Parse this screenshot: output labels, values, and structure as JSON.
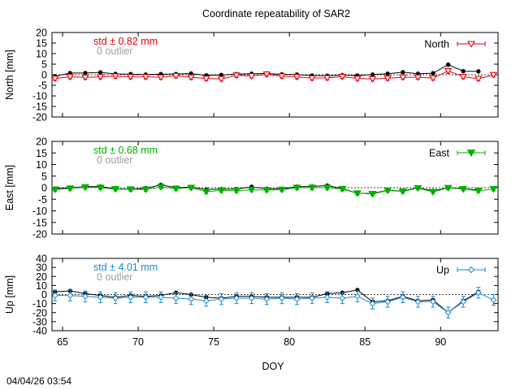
{
  "figure": {
    "title": "Coordinate repeatability of SAR2",
    "xlabel": "DOY",
    "timestamp": "04/04/26 03:54"
  },
  "colors": {
    "north": "#e8000b",
    "east": "#00b000",
    "up": "#1e88d0",
    "reference": "#000000",
    "outlier": "#a0a0a0"
  },
  "chart_data": [
    {
      "type": "line",
      "panel": "north",
      "ylabel": "North [mm]",
      "legend": "North",
      "std_text": "std ± 0.82 mm",
      "outlier_text": "0 outlier",
      "xlim": [
        64.3,
        93.8
      ],
      "ylim": [
        -20,
        20
      ],
      "yticks": [
        "20",
        "15",
        "10",
        "5",
        "0",
        "-5",
        "-10",
        "-15",
        "-20"
      ],
      "xticks": [
        "65",
        "70",
        "75",
        "80",
        "85",
        "90"
      ],
      "x": [
        64.5,
        65.5,
        66.5,
        67.5,
        68.5,
        69.5,
        70.5,
        71.5,
        72.5,
        73.5,
        74.5,
        75.5,
        76.5,
        77.5,
        78.5,
        79.5,
        80.5,
        81.5,
        82.5,
        83.5,
        84.5,
        85.5,
        86.5,
        87.5,
        88.5,
        89.5,
        90.5,
        91.5,
        92.5,
        93.5
      ],
      "series": [
        {
          "name": "North",
          "values": [
            -1.8,
            -1.0,
            -1.2,
            -1.0,
            -0.7,
            -1.0,
            -1.0,
            -1.2,
            -0.5,
            -1.2,
            -1.8,
            -2.0,
            -0.3,
            -0.6,
            0.2,
            -0.7,
            -1.0,
            -1.6,
            -1.5,
            -0.9,
            -1.8,
            -2.0,
            -1.7,
            -1.2,
            -1.2,
            -1.6,
            1.8,
            -0.9,
            -1.9,
            0.0
          ],
          "err": [
            1.0,
            1.0,
            1.0,
            1.0,
            1.0,
            1.0,
            1.0,
            1.0,
            1.0,
            1.0,
            1.0,
            1.0,
            1.0,
            1.0,
            1.0,
            1.0,
            1.0,
            1.0,
            1.0,
            1.0,
            1.0,
            1.0,
            1.0,
            1.0,
            1.0,
            1.0,
            1.2,
            1.0,
            1.0,
            1.0
          ]
        },
        {
          "name": "reference",
          "x": [
            64.5,
            65.5,
            66.5,
            67.5,
            68.5,
            69.5,
            70.5,
            71.5,
            72.5,
            73.5,
            74.5,
            75.5,
            76.5,
            77.5,
            78.5,
            79.5,
            80.5,
            81.5,
            82.5,
            83.5,
            84.5,
            85.5,
            86.5,
            87.5,
            88.5,
            89.5,
            90.5,
            91.5,
            92.5
          ],
          "values": [
            -0.7,
            0.8,
            0.8,
            1.1,
            0.4,
            0.3,
            0.1,
            0.3,
            0.3,
            0.6,
            -0.3,
            -0.1,
            0.3,
            0.5,
            0.6,
            0.2,
            0.1,
            -0.4,
            -0.5,
            -0.2,
            -0.4,
            0.1,
            0.5,
            1.2,
            0.5,
            0.7,
            4.8,
            1.7,
            1.6
          ]
        }
      ]
    },
    {
      "type": "line",
      "panel": "east",
      "ylabel": "East [mm]",
      "legend": "East",
      "std_text": "std ± 0.68 mm",
      "outlier_text": "0 outlier",
      "xlim": [
        64.3,
        93.8
      ],
      "ylim": [
        -20,
        20
      ],
      "yticks": [
        "20",
        "15",
        "10",
        "5",
        "0",
        "-5",
        "-10",
        "-15",
        "-20"
      ],
      "xticks": [
        "65",
        "70",
        "75",
        "80",
        "85",
        "90"
      ],
      "x": [
        64.5,
        65.5,
        66.5,
        67.5,
        68.5,
        69.5,
        70.5,
        71.5,
        72.5,
        73.5,
        74.5,
        75.5,
        76.5,
        77.5,
        78.5,
        79.5,
        80.5,
        81.5,
        82.5,
        83.5,
        84.5,
        85.5,
        86.5,
        87.5,
        88.5,
        89.5,
        90.5,
        91.5,
        92.5,
        93.5
      ],
      "series": [
        {
          "name": "East",
          "values": [
            -0.8,
            -0.3,
            0.2,
            0.0,
            -0.6,
            -0.7,
            -0.8,
            0.3,
            -0.4,
            0.0,
            -1.7,
            -1.2,
            -1.3,
            -0.9,
            -1.0,
            -0.9,
            0.0,
            0.0,
            0.0,
            -0.6,
            -2.4,
            -2.7,
            -1.2,
            -1.6,
            -0.2,
            -1.8,
            -0.1,
            -0.6,
            -1.3,
            -0.6
          ],
          "err": [
            0.8,
            0.8,
            0.8,
            0.8,
            0.8,
            0.8,
            0.8,
            0.8,
            0.8,
            0.8,
            0.8,
            0.8,
            0.8,
            0.8,
            0.8,
            0.8,
            0.8,
            0.8,
            0.8,
            0.8,
            0.8,
            0.8,
            0.8,
            0.8,
            0.8,
            0.8,
            0.8,
            0.8,
            0.8,
            0.8
          ]
        },
        {
          "name": "reference",
          "x": [
            64.5,
            65.5,
            66.5,
            67.5,
            68.5,
            69.5,
            70.5,
            71.5,
            72.5,
            73.5,
            74.5,
            75.5,
            76.5,
            77.5,
            78.5,
            79.5,
            80.5,
            81.5,
            82.5,
            83.5,
            84.5,
            85.5,
            86.5,
            87.5,
            88.5,
            89.5,
            90.5,
            91.5,
            92.5
          ],
          "values": [
            -0.4,
            -0.1,
            0.5,
            0.5,
            -0.5,
            -0.6,
            -0.2,
            1.2,
            0.0,
            0.2,
            -0.8,
            -0.6,
            -0.6,
            0.4,
            -0.5,
            -0.5,
            0.4,
            0.5,
            0.9,
            -0.4,
            -2.4,
            -2.5,
            -1.1,
            -1.5,
            0.0,
            -1.4,
            0.0,
            -0.5,
            -1.0
          ]
        }
      ]
    },
    {
      "type": "line",
      "panel": "up",
      "ylabel": "Up [mm]",
      "legend": "Up",
      "std_text": "std ± 4.01 mm",
      "outlier_text": "0 outlier",
      "xlim": [
        64.3,
        93.8
      ],
      "ylim": [
        -40,
        40
      ],
      "yticks": [
        "40",
        "30",
        "20",
        "10",
        "0",
        "-10",
        "-20",
        "-30",
        "-40"
      ],
      "xticks": [
        "65",
        "70",
        "75",
        "80",
        "85",
        "90"
      ],
      "x": [
        64.5,
        65.5,
        66.5,
        67.5,
        68.5,
        69.5,
        70.5,
        71.5,
        72.5,
        73.5,
        74.5,
        75.5,
        76.5,
        77.5,
        78.5,
        79.5,
        80.5,
        81.5,
        82.5,
        83.5,
        84.5,
        85.5,
        86.5,
        87.5,
        88.5,
        89.5,
        90.5,
        91.5,
        92.5,
        93.5
      ],
      "series": [
        {
          "name": "Up",
          "values": [
            -1.0,
            -1.0,
            -2.0,
            -3.0,
            -4.0,
            -3.0,
            -3.0,
            -3.0,
            -4.0,
            -5.0,
            -7.0,
            -5.0,
            -4.0,
            -4.0,
            -5.0,
            -4.0,
            -5.0,
            -4.0,
            -3.0,
            -4.0,
            -2.0,
            -10.0,
            -8.0,
            -3.0,
            -8.0,
            -8.0,
            -20.0,
            -8.0,
            2.0,
            -6.0
          ],
          "err": [
            6.0,
            6.0,
            6.0,
            6.0,
            6.0,
            6.0,
            6.0,
            6.0,
            6.0,
            6.0,
            6.0,
            6.0,
            6.0,
            6.0,
            6.0,
            6.0,
            6.0,
            6.0,
            6.0,
            6.0,
            6.0,
            6.0,
            6.0,
            6.0,
            6.0,
            6.0,
            6.0,
            6.0,
            6.0,
            6.0
          ]
        },
        {
          "name": "reference",
          "x": [
            64.5,
            65.5,
            66.5,
            67.5,
            68.5,
            69.5,
            70.5,
            71.5,
            72.5,
            73.5,
            74.5,
            75.5,
            76.5,
            77.5,
            78.5,
            79.5,
            80.5,
            81.5,
            82.5,
            83.5,
            84.5,
            85.5,
            86.5,
            87.5,
            88.5,
            89.5,
            90.5,
            91.5,
            92.5
          ],
          "values": [
            3.0,
            4.0,
            1.0,
            -1.0,
            -3.0,
            -1.0,
            -2.0,
            -1.0,
            2.0,
            0.0,
            -3.0,
            -4.0,
            -2.0,
            -2.0,
            -3.0,
            -3.0,
            -3.0,
            -3.0,
            1.0,
            2.0,
            5.0,
            -8.0,
            -7.0,
            -2.0,
            -7.0,
            -6.0,
            -20.0,
            -7.0,
            3.0
          ]
        }
      ]
    }
  ]
}
